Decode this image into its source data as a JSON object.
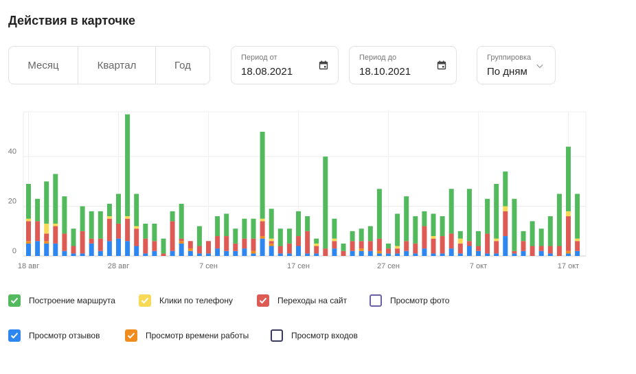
{
  "page_title": "Действия в карточке",
  "period_tabs": [
    "Месяц",
    "Квартал",
    "Год"
  ],
  "period_from": {
    "label": "Период от",
    "value": "18.08.2021"
  },
  "period_to": {
    "label": "Период до",
    "value": "18.10.2021"
  },
  "grouping": {
    "label": "Группировка",
    "value": "По дням"
  },
  "icons": {
    "calendar": "calendar-icon",
    "dropdown": "chevron-down-icon",
    "check": "check-icon"
  },
  "chart_data": {
    "type": "bar",
    "stacked": true,
    "ylim": [
      0,
      58
    ],
    "yticks": [
      0,
      20,
      40
    ],
    "grid": true,
    "xtick_labels": [
      {
        "index": 0,
        "label": "18 авг"
      },
      {
        "index": 10,
        "label": "28 авг"
      },
      {
        "index": 20,
        "label": "7 сен"
      },
      {
        "index": 30,
        "label": "17 сен"
      },
      {
        "index": 40,
        "label": "27 сен"
      },
      {
        "index": 50,
        "label": "7 окт"
      },
      {
        "index": 60,
        "label": "17 окт"
      }
    ],
    "series": [
      {
        "name": "Просмотр отзывов",
        "color": "#2e86f0",
        "values": [
          5,
          6,
          5,
          5,
          2,
          1,
          1,
          5,
          2,
          6,
          7,
          6,
          4,
          1,
          2,
          0,
          2,
          5,
          2,
          1,
          1,
          3,
          2,
          2,
          3,
          1,
          7,
          4,
          1,
          1,
          4,
          1,
          1,
          0,
          3,
          0,
          2,
          2,
          2,
          1,
          1,
          1,
          2,
          1,
          3,
          1,
          1,
          3,
          1,
          4,
          2,
          1,
          1,
          8,
          1,
          2,
          0,
          2,
          1,
          0,
          1,
          2
        ]
      },
      {
        "name": "Просмотр времени работы",
        "color": "#f08c1e",
        "values": [
          1,
          0,
          1,
          0,
          0,
          0,
          0,
          0,
          0,
          0,
          0,
          0,
          0,
          0,
          0,
          0,
          0,
          1,
          1,
          0,
          0,
          0,
          0,
          0,
          0,
          1,
          1,
          1,
          0,
          0,
          0,
          0,
          0,
          0,
          0,
          0,
          0,
          1,
          0,
          1,
          0,
          0,
          0,
          0,
          0,
          0,
          0,
          0,
          0,
          0,
          0,
          0,
          0,
          0,
          0,
          0,
          0,
          0,
          0,
          0,
          1,
          0
        ]
      },
      {
        "name": "Переходы на сайт",
        "color": "#de5b55",
        "values": [
          8,
          8,
          3,
          7,
          7,
          3,
          9,
          2,
          5,
          9,
          6,
          9,
          7,
          6,
          4,
          1,
          12,
          1,
          3,
          3,
          5,
          5,
          6,
          3,
          4,
          5,
          6,
          1,
          3,
          4,
          4,
          9,
          3,
          3,
          3,
          2,
          4,
          3,
          4,
          5,
          2,
          2,
          4,
          4,
          9,
          6,
          7,
          6,
          4,
          2,
          2,
          8,
          5,
          10,
          1,
          4,
          4,
          2,
          3,
          4,
          14,
          4
        ]
      },
      {
        "name": "Клики по телефону",
        "color": "#f8d955",
        "values": [
          1,
          0,
          4,
          1,
          0,
          0,
          0,
          0,
          0,
          1,
          0,
          1,
          1,
          0,
          0,
          0,
          0,
          0,
          0,
          0,
          0,
          0,
          0,
          0,
          0,
          0,
          1,
          1,
          0,
          0,
          0,
          0,
          1,
          0,
          1,
          0,
          0,
          0,
          0,
          0,
          0,
          1,
          0,
          0,
          0,
          1,
          0,
          0,
          2,
          0,
          0,
          0,
          1,
          2,
          0,
          0,
          0,
          0,
          0,
          0,
          2,
          1
        ]
      },
      {
        "name": "Построение маршрута",
        "color": "#52b95c",
        "values": [
          14,
          9,
          17,
          20,
          15,
          7,
          10,
          11,
          11,
          5,
          12,
          41,
          13,
          6,
          7,
          6,
          4,
          14,
          0,
          8,
          0,
          8,
          9,
          6,
          8,
          8,
          35,
          12,
          7,
          6,
          10,
          6,
          2,
          37,
          8,
          3,
          4,
          5,
          6,
          20,
          2,
          13,
          18,
          11,
          6,
          9,
          8,
          18,
          3,
          21,
          6,
          14,
          22,
          14,
          21,
          4,
          10,
          7,
          12,
          21,
          26,
          18
        ]
      }
    ]
  },
  "legend": [
    {
      "label": "Построение маршрута",
      "checked": true,
      "color": "#52b95c"
    },
    {
      "label": "Клики по телефону",
      "checked": true,
      "color": "#f8d955"
    },
    {
      "label": "Переходы на сайт",
      "checked": true,
      "color": "#de5b55"
    },
    {
      "label": "Просмотр фото",
      "checked": false,
      "color": "#6c5fa8"
    },
    {
      "label": "Просмотр отзывов",
      "checked": true,
      "color": "#2e86f0"
    },
    {
      "label": "Просмотр времени работы",
      "checked": true,
      "color": "#f08c1e"
    },
    {
      "label": "Просмотр входов",
      "checked": false,
      "color": "#3a3a5c"
    }
  ]
}
